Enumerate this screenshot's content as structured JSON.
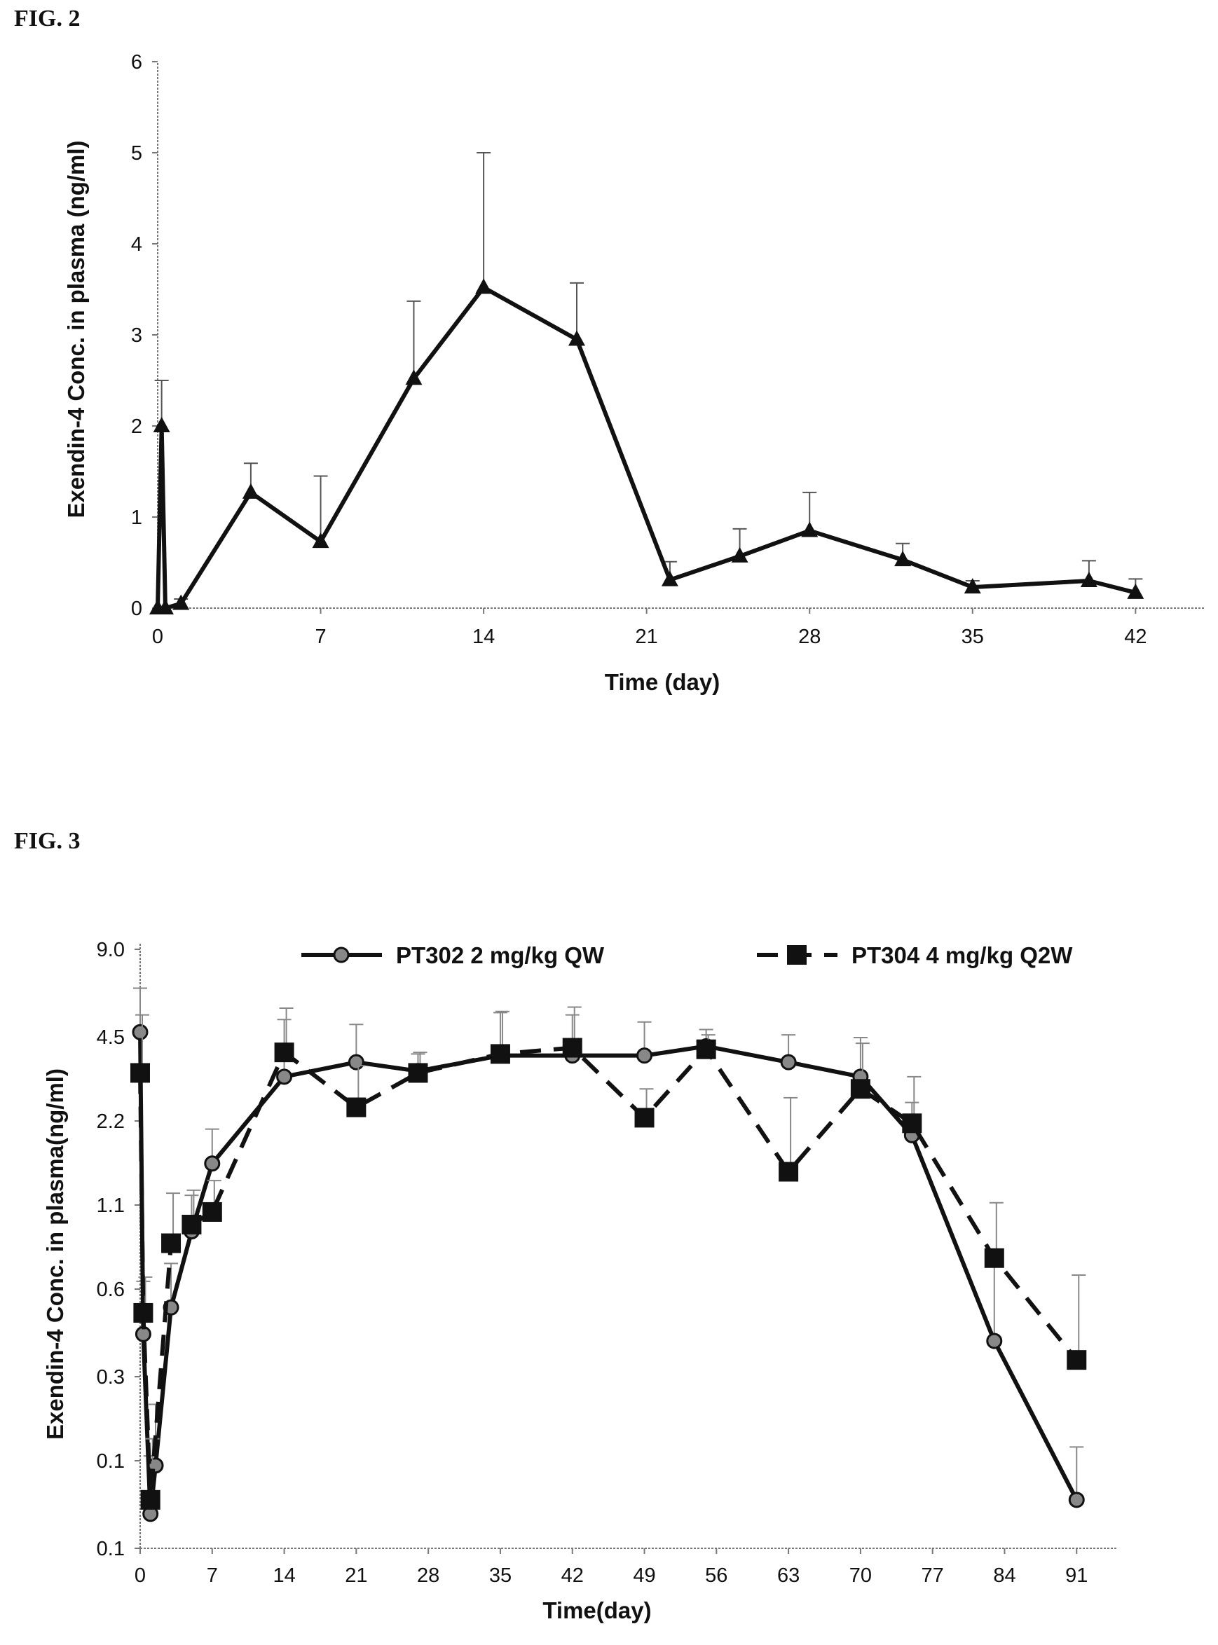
{
  "figures": [
    {
      "label": "FIG. 2"
    },
    {
      "label": "FIG. 3"
    }
  ],
  "chart_data": [
    {
      "type": "line",
      "title": "",
      "xlabel": "Time (day)",
      "ylabel": "Exendin-4 Conc. in plasma (ng/ml)",
      "xlim": [
        0,
        45
      ],
      "ylim": [
        0,
        6
      ],
      "xticks": [
        "0",
        "7",
        "14",
        "21",
        "28",
        "35",
        "42"
      ],
      "yticks": [
        "0",
        "1",
        "2",
        "3",
        "4",
        "5",
        "6"
      ],
      "grid": false,
      "legend": "none",
      "series": [
        {
          "marker": "triangle",
          "color": "#111111",
          "x": [
            0,
            0.17,
            0.33,
            1,
            4,
            7,
            11,
            14,
            18,
            22,
            25,
            28,
            32,
            35,
            40,
            42
          ],
          "y": [
            0,
            2.0,
            0.0,
            0.05,
            1.27,
            0.73,
            2.52,
            3.52,
            2.95,
            0.31,
            0.57,
            0.85,
            0.53,
            0.23,
            0.3,
            0.17
          ],
          "err": [
            0,
            0.5,
            0,
            0.05,
            0.32,
            0.72,
            0.85,
            1.48,
            0.62,
            0.2,
            0.3,
            0.42,
            0.18,
            0.07,
            0.22,
            0.15
          ]
        }
      ]
    },
    {
      "type": "line",
      "title": "",
      "xlabel": "Time(day)",
      "ylabel": "Exendin-4 Conc. in plasma(ng/ml)",
      "xlim": [
        0,
        95
      ],
      "yscale": "log",
      "yticks": [
        "0.1",
        "0.1",
        "0.3",
        "0.6",
        "1.1",
        "2.2",
        "4.5",
        "9.0"
      ],
      "xticks": [
        "0",
        "7",
        "14",
        "21",
        "28",
        "35",
        "42",
        "49",
        "56",
        "63",
        "70",
        "77",
        "84",
        "91"
      ],
      "grid": false,
      "legend": "top",
      "series": [
        {
          "name": "PT302 2 mg/kg QW",
          "marker": "diamond",
          "line": "solid",
          "color": "#111111",
          "x": [
            0,
            0.3,
            1,
            1.5,
            3,
            5,
            7,
            14,
            21,
            27,
            35,
            42,
            49,
            55,
            63,
            70,
            75,
            83,
            91
          ],
          "y": [
            4.5,
            0.36,
            0.08,
            0.12,
            0.45,
            0.85,
            1.5,
            3.1,
            3.5,
            3.25,
            3.7,
            3.7,
            3.7,
            4.0,
            3.5,
            3.1,
            1.9,
            0.34,
            0.09
          ],
          "err": [
            2.0,
            0.2,
            0.05,
            0.08,
            0.2,
            0.3,
            0.5,
            1.9,
            1.3,
            0.5,
            1.6,
            1.5,
            1.2,
            0.6,
            0.9,
            1.2,
            0.6,
            0.3,
            0.05
          ]
        },
        {
          "name": "PT304 4 mg/kg Q2W",
          "marker": "square",
          "line": "dashed",
          "color": "#111111",
          "x": [
            0,
            0.3,
            1,
            3,
            5,
            7,
            14,
            21,
            27,
            35,
            42,
            49,
            55,
            63,
            70,
            75,
            83,
            91
          ],
          "y": [
            3.2,
            0.43,
            0.09,
            0.77,
            0.9,
            1.0,
            3.8,
            2.4,
            3.2,
            3.75,
            3.95,
            2.2,
            3.9,
            1.4,
            2.8,
            2.1,
            0.68,
            0.29
          ],
          "err": [
            2.0,
            0.15,
            0.06,
            0.4,
            0.3,
            0.3,
            1.7,
            1.0,
            0.6,
            1.6,
            1.6,
            0.6,
            0.5,
            1.2,
            1.3,
            1.0,
            0.4,
            0.3
          ]
        }
      ]
    }
  ]
}
